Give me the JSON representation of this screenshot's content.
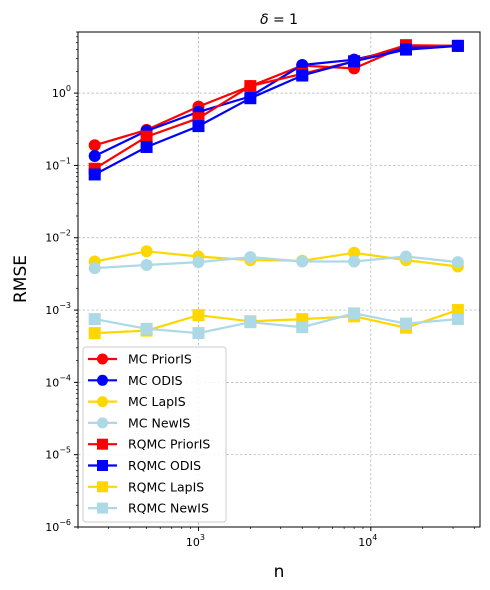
{
  "chart_data": {
    "type": "line",
    "title": "δ = 1",
    "xlabel": "n",
    "ylabel": "RMSE",
    "xscale": "log",
    "yscale": "log",
    "xlim": [
      200,
      43000
    ],
    "ylim": [
      1e-06,
      7
    ],
    "grid": true,
    "legend_position": "lower-left",
    "x": [
      250,
      500,
      1000,
      2000,
      4000,
      8000,
      16000,
      32000
    ],
    "x_ticks": [
      {
        "value": 1000,
        "base": "10",
        "exp": "3"
      },
      {
        "value": 10000,
        "base": "10",
        "exp": "4"
      }
    ],
    "y_ticks": [
      {
        "value": 1e-06,
        "base": "10",
        "exp": "−6"
      },
      {
        "value": 1e-05,
        "base": "10",
        "exp": "−5"
      },
      {
        "value": 0.0001,
        "base": "10",
        "exp": "−4"
      },
      {
        "value": 0.001,
        "base": "10",
        "exp": "−3"
      },
      {
        "value": 0.01,
        "base": "10",
        "exp": "−2"
      },
      {
        "value": 0.1,
        "base": "10",
        "exp": "−1"
      },
      {
        "value": 1,
        "base": "10",
        "exp": "0"
      }
    ],
    "series": [
      {
        "name": "MC PriorIS",
        "color": "#ff0000",
        "marker": "circle",
        "values": [
          0.19,
          0.31,
          0.65,
          1.25,
          2.4,
          2.2,
          4.5,
          4.5
        ]
      },
      {
        "name": "MC ODIS",
        "color": "#0000ff",
        "marker": "circle",
        "values": [
          0.135,
          0.3,
          0.55,
          0.9,
          2.45,
          2.9,
          4.2,
          4.5
        ]
      },
      {
        "name": "MC LapIS",
        "color": "#ffd700",
        "marker": "circle",
        "values": [
          0.0047,
          0.0065,
          0.0055,
          0.0049,
          0.0048,
          0.0062,
          0.0049,
          0.004
        ]
      },
      {
        "name": "MC NewIS",
        "color": "#add8e6",
        "marker": "circle",
        "values": [
          0.0038,
          0.0042,
          0.0046,
          0.0054,
          0.0047,
          0.0047,
          0.0055,
          0.0046
        ]
      },
      {
        "name": "RQMC PriorIS",
        "color": "#ff0000",
        "marker": "square",
        "values": [
          0.09,
          0.25,
          0.45,
          1.25,
          1.85,
          2.75,
          4.6,
          4.5
        ]
      },
      {
        "name": "RQMC ODIS",
        "color": "#0000ff",
        "marker": "square",
        "values": [
          0.075,
          0.18,
          0.35,
          0.85,
          1.75,
          2.75,
          4.0,
          4.5
        ]
      },
      {
        "name": "RQMC LapIS",
        "color": "#ffd700",
        "marker": "square",
        "values": [
          0.00048,
          0.00052,
          0.00085,
          0.0007,
          0.00075,
          0.00082,
          0.00057,
          0.001
        ]
      },
      {
        "name": "RQMC NewIS",
        "color": "#add8e6",
        "marker": "square",
        "values": [
          0.00075,
          0.00055,
          0.00048,
          0.00068,
          0.00058,
          0.0009,
          0.00065,
          0.00075
        ]
      }
    ]
  }
}
